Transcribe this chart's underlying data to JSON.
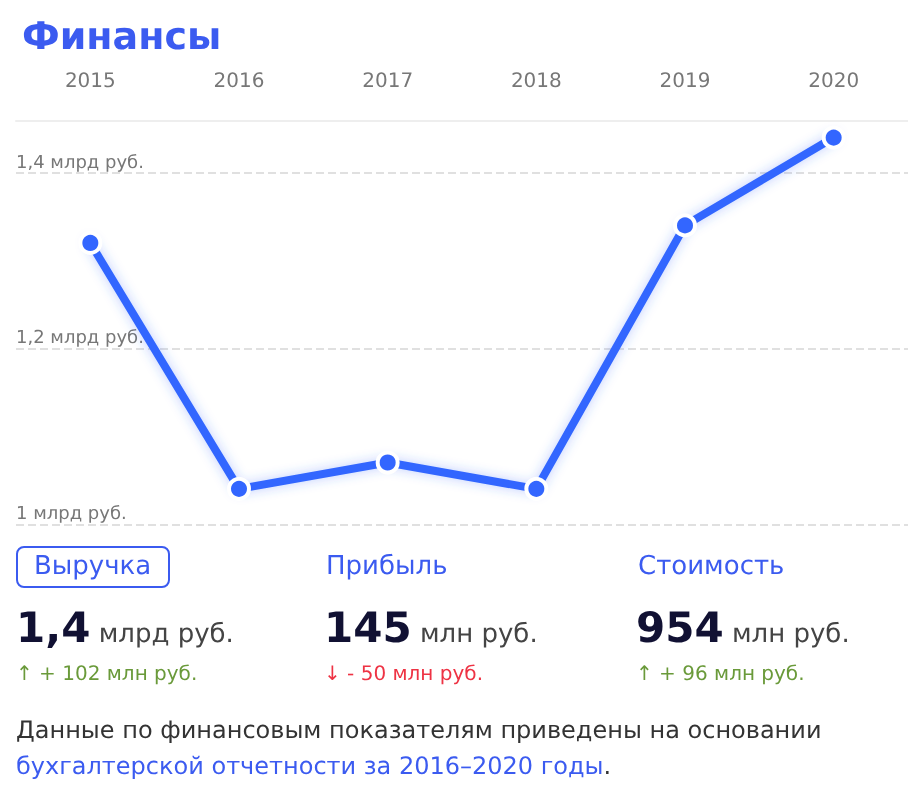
{
  "chart_data": [
    {
      "type": "line",
      "title": "Финансы",
      "categories": [
        "2015",
        "2016",
        "2017",
        "2018",
        "2019",
        "2020"
      ],
      "series": [
        {
          "color": "#3366ff",
          "values": [
            1.32,
            1.04,
            1.07,
            1.04,
            1.34,
            1.44
          ]
        }
      ],
      "ylim": [
        1.0,
        1.46
      ],
      "yticks": [
        {
          "value": 1.0,
          "label": "1 млрд руб."
        },
        {
          "value": 1.2,
          "label": "1,2 млрд руб."
        },
        {
          "value": 1.4,
          "label": "1,4 млрд руб."
        }
      ],
      "grid": "y",
      "marker": "circle",
      "line_style": "solid"
    },
    {
      "type": "other",
      "annotations": [
        "Выручка",
        "1,4",
        "млрд руб.",
        "↑ + 102 млн руб.",
        "Прибыль",
        "145",
        "млн руб.",
        "↓ - 50 млн руб.",
        "Стоимость",
        "954",
        "млн руб.",
        "↑ + 96 млн руб.",
        "Данные по финансовым показателям приведены на основании ",
        "бухгалтерской отчетности за 2016–2020 годы",
        "."
      ]
    }
  ]
}
